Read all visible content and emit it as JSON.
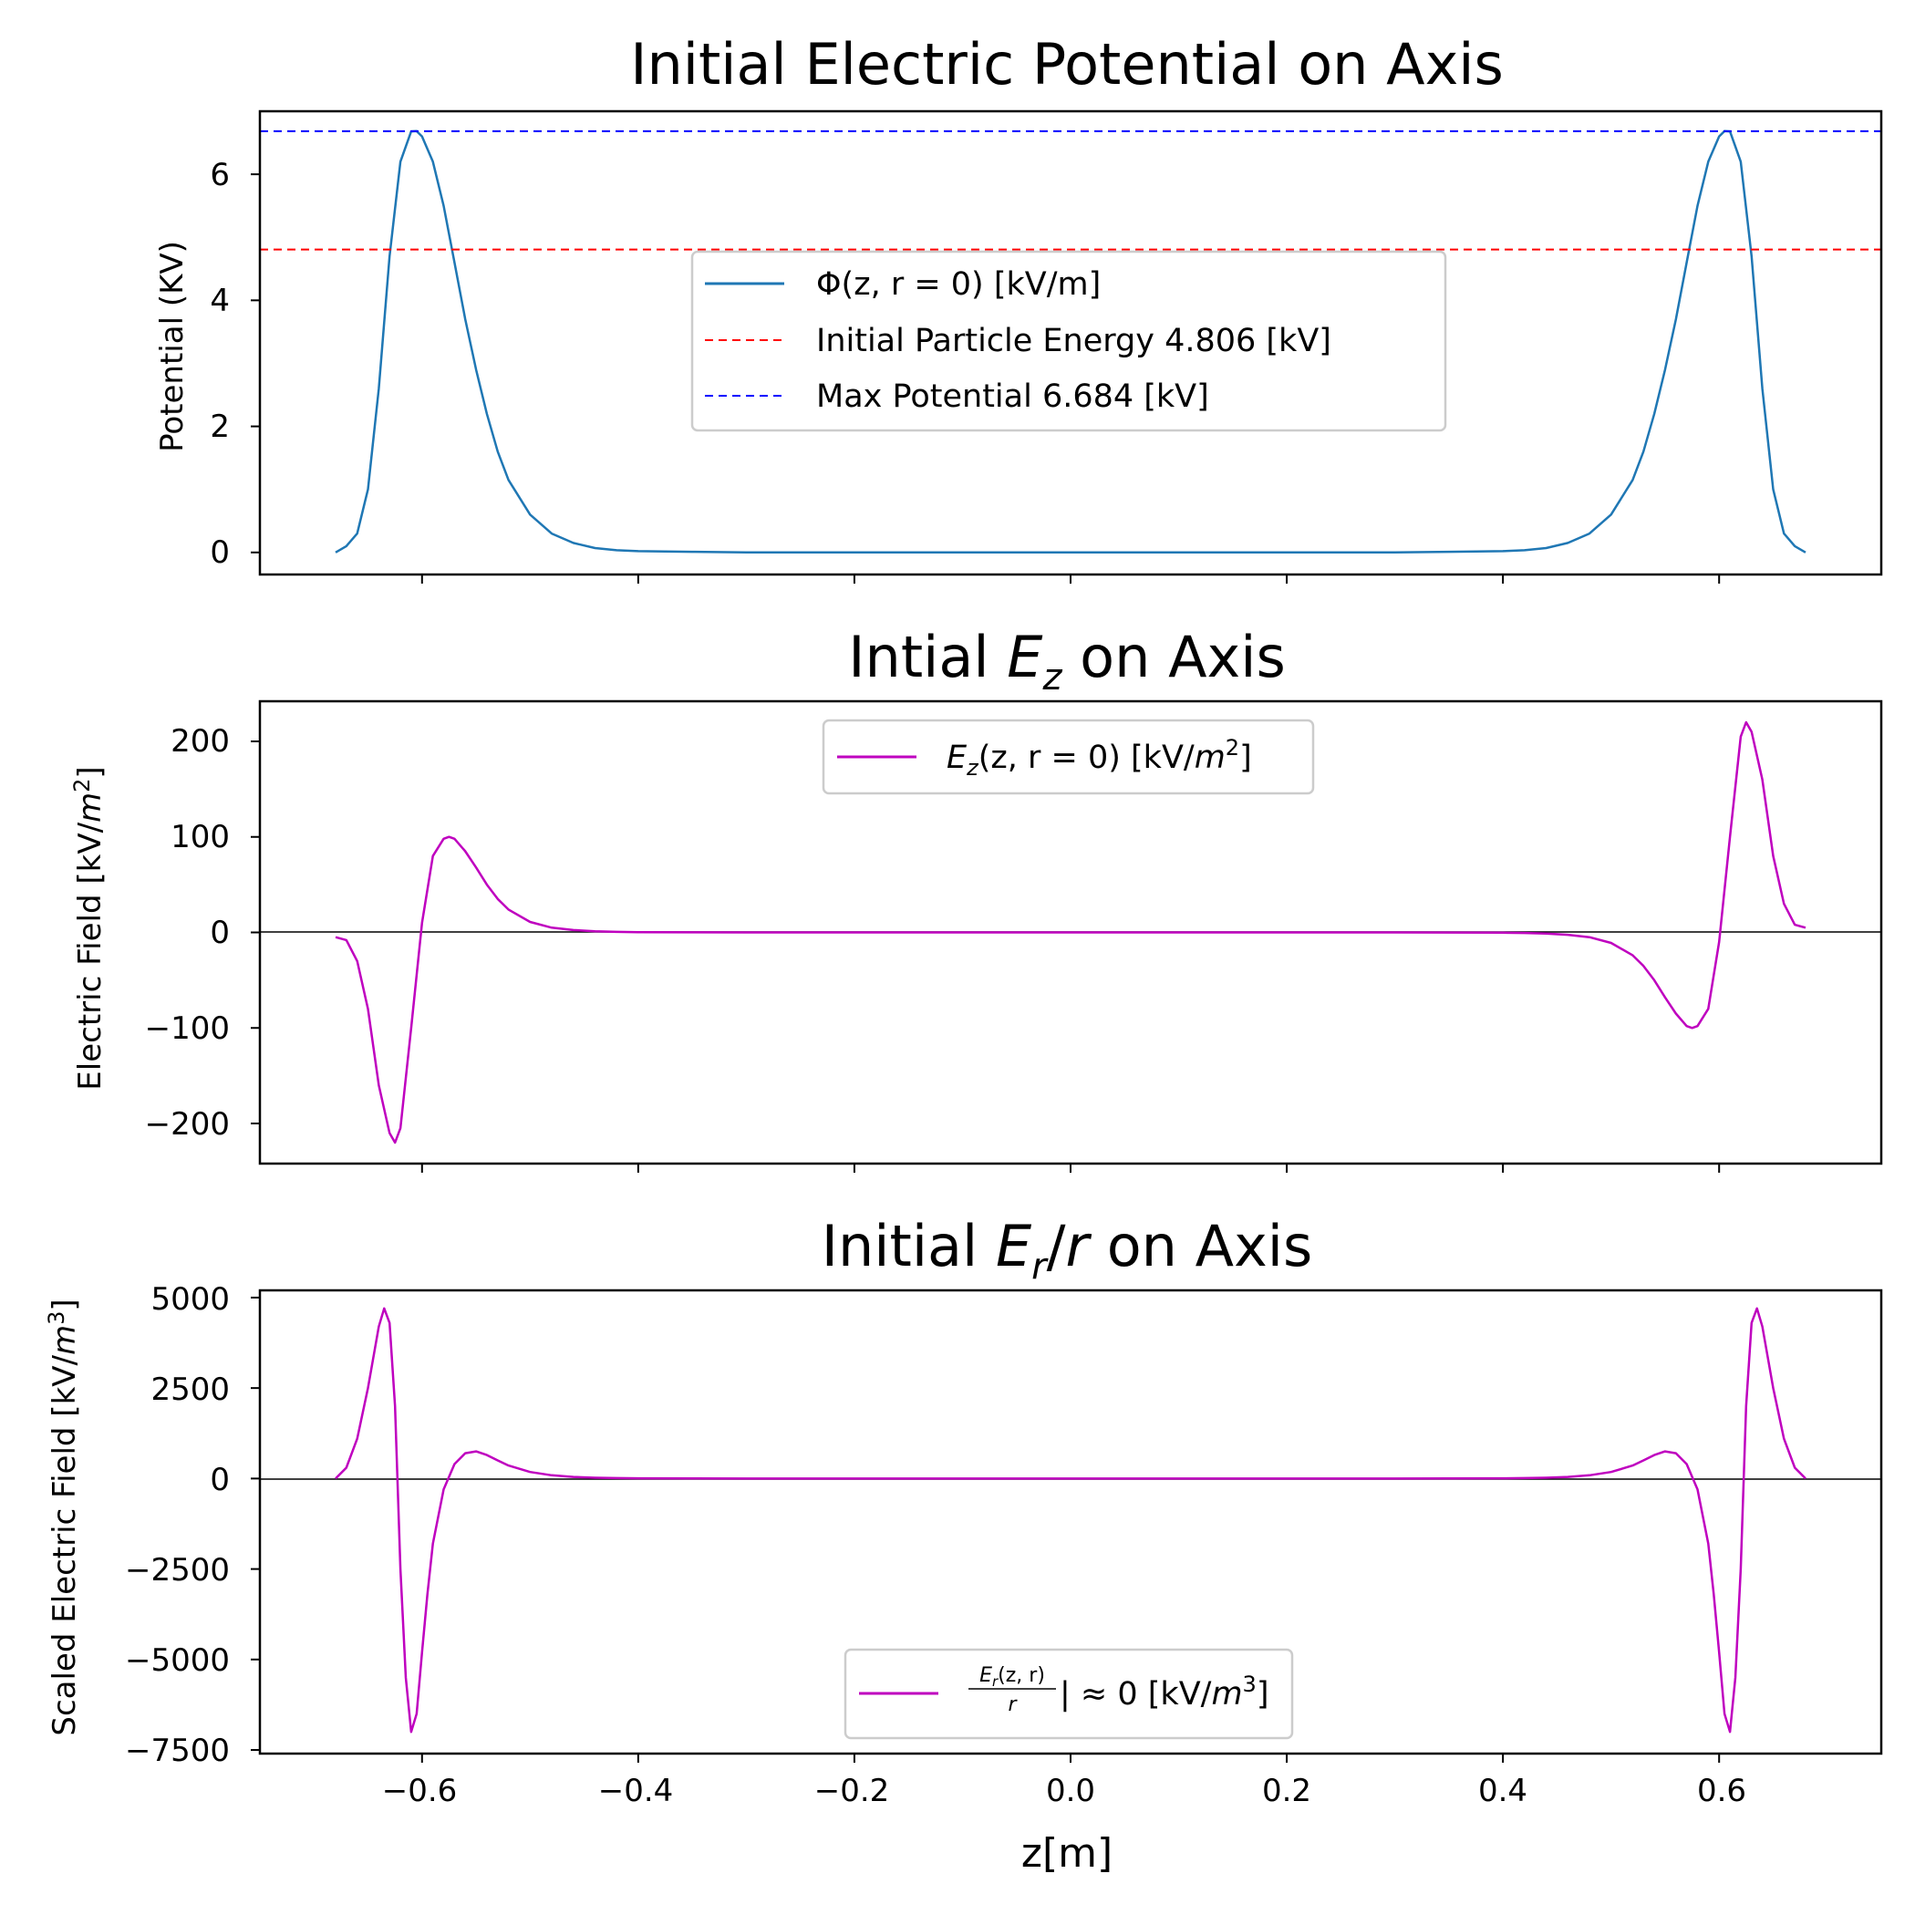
{
  "chart_data": [
    {
      "type": "line",
      "title": "Initial Electric Potential on Axis",
      "ylabel": "Potential (KV)",
      "xlabel": "",
      "xlim": [
        -0.75,
        0.75
      ],
      "ylim": [
        -0.35,
        7.0
      ],
      "yticks": [
        "0",
        "2",
        "4",
        "6"
      ],
      "grid": false,
      "legend_position": "upper-center",
      "series": [
        {
          "name": "Φ(z, r = 0) [kV/m]",
          "color": "#1f77b4",
          "style": "solid",
          "x": [
            -0.68,
            -0.67,
            -0.66,
            -0.65,
            -0.64,
            -0.63,
            -0.62,
            -0.61,
            -0.605,
            -0.6,
            -0.59,
            -0.58,
            -0.57,
            -0.56,
            -0.55,
            -0.54,
            -0.53,
            -0.52,
            -0.5,
            -0.48,
            -0.46,
            -0.44,
            -0.42,
            -0.4,
            -0.35,
            -0.3,
            -0.2,
            -0.1,
            0.0,
            0.1,
            0.2,
            0.3,
            0.35,
            0.4,
            0.42,
            0.44,
            0.46,
            0.48,
            0.5,
            0.52,
            0.53,
            0.54,
            0.55,
            0.56,
            0.57,
            0.58,
            0.59,
            0.6,
            0.605,
            0.61,
            0.62,
            0.63,
            0.64,
            0.65,
            0.66,
            0.67,
            0.68
          ],
          "y": [
            0.0,
            0.1,
            0.3,
            1.0,
            2.6,
            4.7,
            6.2,
            6.68,
            6.684,
            6.6,
            6.2,
            5.5,
            4.6,
            3.7,
            2.9,
            2.2,
            1.6,
            1.15,
            0.6,
            0.3,
            0.15,
            0.07,
            0.035,
            0.02,
            0.01,
            0.0,
            0.0,
            0.0,
            0.0,
            0.0,
            0.0,
            0.0,
            0.01,
            0.02,
            0.035,
            0.07,
            0.15,
            0.3,
            0.6,
            1.15,
            1.6,
            2.2,
            2.9,
            3.7,
            4.6,
            5.5,
            6.2,
            6.6,
            6.684,
            6.68,
            6.2,
            4.7,
            2.6,
            1.0,
            0.3,
            0.1,
            0.0
          ]
        },
        {
          "name": "Initial Particle Energy 4.806 [kV]",
          "color": "#ff0000",
          "style": "dashed",
          "value": 4.806
        },
        {
          "name": "Max Potential 6.684 [kV]",
          "color": "#0000ff",
          "style": "dashed",
          "value": 6.684
        }
      ]
    },
    {
      "type": "line",
      "title_prefix": "Intial ",
      "title_math": "E",
      "title_sub": "z",
      "title_suffix": " on Axis",
      "ylabel_prefix": "Electric Field [kV/",
      "ylabel_math": "m",
      "ylabel_sup": "2",
      "ylabel_suffix": "]",
      "xlabel": "",
      "xlim": [
        -0.75,
        0.75
      ],
      "ylim": [
        -242,
        242
      ],
      "yticks": [
        "200",
        "100",
        "0",
        "−100",
        "−200"
      ],
      "zero_line": true,
      "grid": false,
      "legend_position": "upper-center",
      "series": [
        {
          "legend_math": "E",
          "legend_sub": "z",
          "legend_rest": "(z, r = 0) [kV/",
          "legend_math2": "m",
          "legend_sup": "2",
          "legend_end": "]",
          "color": "#bf00bf",
          "style": "solid",
          "x": [
            -0.68,
            -0.67,
            -0.66,
            -0.65,
            -0.64,
            -0.63,
            -0.625,
            -0.62,
            -0.61,
            -0.6,
            -0.59,
            -0.58,
            -0.575,
            -0.57,
            -0.56,
            -0.55,
            -0.54,
            -0.53,
            -0.52,
            -0.5,
            -0.48,
            -0.46,
            -0.44,
            -0.42,
            -0.4,
            -0.35,
            -0.3,
            -0.2,
            -0.1,
            0.0,
            0.1,
            0.2,
            0.3,
            0.35,
            0.4,
            0.42,
            0.44,
            0.46,
            0.48,
            0.5,
            0.52,
            0.53,
            0.54,
            0.55,
            0.56,
            0.57,
            0.575,
            0.58,
            0.59,
            0.6,
            0.61,
            0.62,
            0.625,
            0.63,
            0.64,
            0.65,
            0.66,
            0.67,
            0.68
          ],
          "y": [
            -5,
            -8,
            -30,
            -80,
            -160,
            -210,
            -220,
            -205,
            -100,
            10,
            80,
            98,
            100,
            98,
            85,
            68,
            50,
            35,
            24,
            11,
            5,
            2.5,
            1.2,
            0.6,
            0.3,
            0.1,
            0.0,
            0.0,
            0.0,
            0.0,
            0.0,
            0.0,
            0.0,
            -0.1,
            -0.3,
            -0.6,
            -1.2,
            -2.5,
            -5,
            -11,
            -24,
            -35,
            -50,
            -68,
            -85,
            -98,
            -100,
            -98,
            -80,
            -10,
            100,
            205,
            220,
            210,
            160,
            80,
            30,
            8,
            5
          ]
        }
      ]
    },
    {
      "type": "line",
      "title_prefix": "Initial ",
      "title_math": "E",
      "title_sub": "r",
      "title_suffix": "/",
      "title_math2": "r",
      "title_end": " on Axis",
      "ylabel_prefix": "Scaled Electric Field [kV/",
      "ylabel_math": "m",
      "ylabel_sup": "3",
      "ylabel_suffix": "]",
      "xlabel": "z[m]",
      "xlim": [
        -0.75,
        0.75
      ],
      "ylim": [
        -7600,
        5200
      ],
      "yticks": [
        "5000",
        "2500",
        "0",
        "−2500",
        "−5000",
        "−7500"
      ],
      "xticks": [
        "−0.6",
        "−0.4",
        "−0.2",
        "0.0",
        "0.2",
        "0.4",
        "0.6"
      ],
      "zero_line": true,
      "grid": false,
      "legend_position": "lower-center",
      "series": [
        {
          "legend_frac_num": "E",
          "legend_frac_num_sub": "r",
          "legend_frac_num_rest": "(z, r)",
          "legend_frac_den": "r",
          "legend_eval": "| ≈ 0",
          "legend_units_prefix": " [kV/",
          "legend_units_math": "m",
          "legend_units_sup": "3",
          "legend_units_end": "]",
          "color": "#bf00bf",
          "style": "solid",
          "x": [
            -0.68,
            -0.67,
            -0.66,
            -0.65,
            -0.64,
            -0.635,
            -0.63,
            -0.625,
            -0.62,
            -0.615,
            -0.61,
            -0.605,
            -0.6,
            -0.595,
            -0.59,
            -0.58,
            -0.57,
            -0.56,
            -0.55,
            -0.54,
            -0.53,
            -0.52,
            -0.5,
            -0.48,
            -0.46,
            -0.44,
            -0.42,
            -0.4,
            -0.35,
            -0.3,
            -0.2,
            -0.1,
            0.0,
            0.1,
            0.2,
            0.3,
            0.35,
            0.4,
            0.42,
            0.44,
            0.46,
            0.48,
            0.5,
            0.52,
            0.53,
            0.54,
            0.55,
            0.56,
            0.57,
            0.58,
            0.59,
            0.595,
            0.6,
            0.605,
            0.61,
            0.615,
            0.62,
            0.625,
            0.63,
            0.635,
            0.64,
            0.65,
            0.66,
            0.67,
            0.68
          ],
          "y": [
            0,
            300,
            1100,
            2500,
            4200,
            4700,
            4300,
            2000,
            -2500,
            -5500,
            -7000,
            -6500,
            -4800,
            -3200,
            -1800,
            -300,
            400,
            700,
            750,
            650,
            500,
            360,
            180,
            90,
            45,
            22,
            11,
            6,
            2,
            0,
            0,
            0,
            0,
            0,
            0,
            0,
            2,
            6,
            11,
            22,
            45,
            90,
            180,
            360,
            500,
            650,
            750,
            700,
            400,
            -300,
            -1800,
            -3200,
            -4800,
            -6500,
            -7000,
            -5500,
            -2500,
            2000,
            4300,
            4700,
            4200,
            2500,
            1100,
            300,
            0
          ]
        }
      ]
    }
  ]
}
